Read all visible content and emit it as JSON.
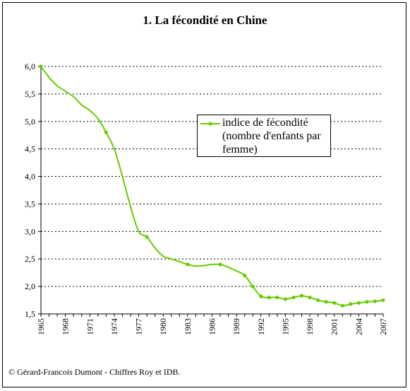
{
  "chart_data": {
    "type": "line",
    "title": "1. La fécondité en Chine",
    "xlabel": "",
    "ylabel": "",
    "xlim": [
      1965,
      2007
    ],
    "ylim": [
      1.5,
      6.0
    ],
    "y_ticks": [
      "1,5",
      "2,0",
      "2,5",
      "3,0",
      "3,5",
      "4,0",
      "4,5",
      "5,0",
      "5,5",
      "6,0"
    ],
    "y_tick_values": [
      1.5,
      2.0,
      2.5,
      3.0,
      3.5,
      4.0,
      4.5,
      5.0,
      5.5,
      6.0
    ],
    "x_ticks": [
      "1965",
      "1968",
      "1971",
      "1974",
      "1977",
      "1980",
      "1983",
      "1986",
      "1989",
      "1992",
      "1995",
      "1998",
      "2001",
      "2004",
      "2007"
    ],
    "x_tick_values": [
      1965,
      1968,
      1971,
      1974,
      1977,
      1980,
      1983,
      1986,
      1989,
      1992,
      1995,
      1998,
      2001,
      2004,
      2007
    ],
    "grid": "horizontal dotted",
    "legend_position": "upper-right",
    "series": [
      {
        "name": "indice de fécondité (nombre d'enfants par femme)",
        "color": "#66cc00",
        "x": [
          1965,
          1966,
          1967,
          1968,
          1969,
          1970,
          1971,
          1972,
          1973,
          1974,
          1975,
          1976,
          1977,
          1978,
          1979,
          1980,
          1981,
          1982,
          1983,
          1984,
          1985,
          1986,
          1987,
          1988,
          1989,
          1990,
          1991,
          1992,
          1993,
          1994,
          1995,
          1996,
          1997,
          1998,
          1999,
          2000,
          2001,
          2002,
          2003,
          2004,
          2005,
          2006,
          2007
        ],
        "values": [
          6.0,
          5.8,
          5.65,
          5.55,
          5.45,
          5.3,
          5.2,
          5.05,
          4.8,
          4.5,
          4.0,
          3.45,
          3.0,
          2.9,
          2.7,
          2.55,
          2.5,
          2.45,
          2.4,
          2.37,
          2.38,
          2.4,
          2.4,
          2.35,
          2.28,
          2.2,
          2.0,
          1.82,
          1.8,
          1.8,
          1.77,
          1.8,
          1.83,
          1.8,
          1.75,
          1.72,
          1.7,
          1.65,
          1.68,
          1.7,
          1.72,
          1.73,
          1.75
        ],
        "markers": [
          1965,
          1973,
          1978,
          1983,
          1987,
          1990,
          1991,
          1992,
          1993,
          1994,
          1995,
          1996,
          1997,
          1998,
          1999,
          2000,
          2001,
          2002,
          2003,
          2004,
          2005,
          2006,
          2007
        ]
      }
    ]
  },
  "legend": {
    "label": "indice de fécondité (nombre d'enfants par femme)"
  },
  "credit": "© Gérard-Francois Dumont - Chiffres Roy et IDB."
}
